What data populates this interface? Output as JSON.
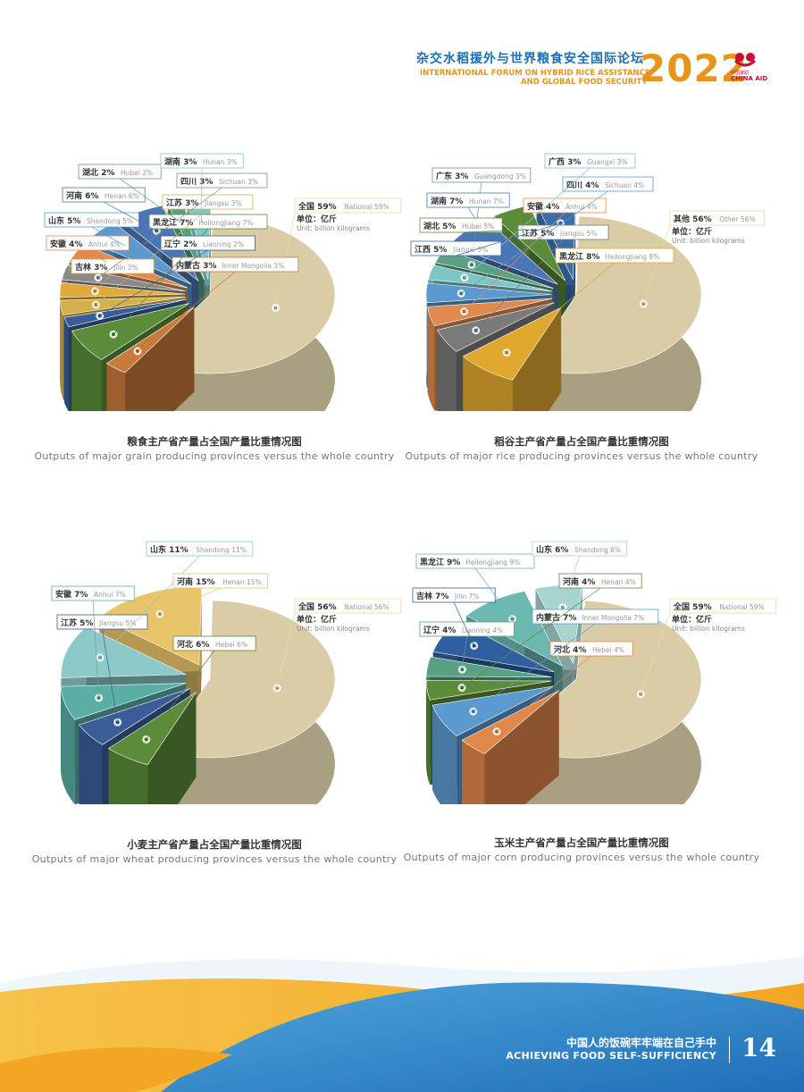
{
  "header": {
    "title_cn": "杂交水稻援外与世界粮食安全国际论坛",
    "title_en_1": "INTERNATIONAL FORUM ON HYBRID RICE ASSISTANCE",
    "title_en_2": "AND GLOBAL FOOD SECURITY",
    "year": "2022",
    "logo_cn": "中国援助",
    "logo_en": "CHINA AID",
    "brand_color": "#e8941a",
    "title_color": "#1a6fb5"
  },
  "footer": {
    "slogan_cn": "中国人的饭碗牢牢端在自己手中",
    "slogan_en": "ACHIEVING FOOD SELF-SUFFICIENCY",
    "page_number": "14"
  },
  "chart_data": [
    {
      "type": "pie",
      "title_cn": "粮食主产省产量占全国产量比重情况图",
      "title_en": "Outputs of major grain producing provinces versus the whole country",
      "unit_cn": "单位：亿斤",
      "unit_en": "Unit: billion kilograms",
      "slices": [
        {
          "cn": "全国",
          "en": "National",
          "pct": 59,
          "label": "全国 59%",
          "sub": "National 59%",
          "color": "#d9cca6"
        },
        {
          "cn": "内蒙古",
          "en": "Inner Mongolia",
          "pct": 3,
          "label": "内蒙古 3%",
          "sub": "Inner Mongolia 3%",
          "color": "#c87a3a"
        },
        {
          "cn": "黑龙江",
          "en": "Heilongjiang",
          "pct": 7,
          "label": "黑龙江 7%",
          "sub": "Heilongjiang 7%",
          "color": "#5b8c3a"
        },
        {
          "cn": "辽宁",
          "en": "Liaoning",
          "pct": 2,
          "label": "辽宁 2%",
          "sub": "Liaoning 2%",
          "color": "#3a5d9a"
        },
        {
          "cn": "江苏",
          "en": "Jiangsu",
          "pct": 3,
          "label": "江苏 3%",
          "sub": "Jiangsu 3%",
          "color": "#d4b04a"
        },
        {
          "cn": "吉林",
          "en": "Jilin",
          "pct": 3,
          "label": "吉林 3%",
          "sub": "Jilin 3%",
          "color": "#e0a93a"
        },
        {
          "cn": "四川",
          "en": "Sichuan",
          "pct": 3,
          "label": "四川 3%",
          "sub": "Sichuan 3%",
          "color": "#8a8a8a"
        },
        {
          "cn": "安徽",
          "en": "Anhui",
          "pct": 4,
          "label": "安徽 4%",
          "sub": "Anhui 4%",
          "color": "#e08a50"
        },
        {
          "cn": "山东",
          "en": "Shandong",
          "pct": 5,
          "label": "山东 5%",
          "sub": "Shandong 5%",
          "color": "#5a9ad0"
        },
        {
          "cn": "河南",
          "en": "Henan",
          "pct": 6,
          "label": "河南 6%",
          "sub": "Henan 6%",
          "color": "#4a76b5"
        },
        {
          "cn": "湖北",
          "en": "Hubei",
          "pct": 2,
          "label": "湖北 2%",
          "sub": "Hubei 2%",
          "color": "#5aa082"
        },
        {
          "cn": "湖南",
          "en": "Hunan",
          "pct": 3,
          "label": "湖南 3%",
          "sub": "Hunan 3%",
          "color": "#7ec6c6"
        }
      ]
    },
    {
      "type": "pie",
      "title_cn": "稻谷主产省产量占全国产量比重情况图",
      "title_en": "Outputs of major rice producing provinces versus the whole country",
      "unit_cn": "单位：亿斤",
      "unit_en": "Unit: billion kilograms",
      "slices": [
        {
          "cn": "其他",
          "en": "Other",
          "pct": 56,
          "label": "其他 56%",
          "sub": "Other 56%",
          "color": "#d9cca6"
        },
        {
          "cn": "黑龙江",
          "en": "Heilongjiang",
          "pct": 8,
          "label": "黑龙江 8%",
          "sub": "Heilongjiang 8%",
          "color": "#e0a82e"
        },
        {
          "cn": "江苏",
          "en": "Jiangsu",
          "pct": 5,
          "label": "江苏 5%",
          "sub": "Jiangsu 5%",
          "color": "#7a7a7a"
        },
        {
          "cn": "安徽",
          "en": "Anhui",
          "pct": 4,
          "label": "安徽 4%",
          "sub": "Anhui 4%",
          "color": "#e08a50"
        },
        {
          "cn": "四川",
          "en": "Sichuan",
          "pct": 4,
          "label": "四川 4%",
          "sub": "Sichuan 4%",
          "color": "#5a9ad0"
        },
        {
          "cn": "广西",
          "en": "Guangxi",
          "pct": 3,
          "label": "广西 3%",
          "sub": "Guangxi 3%",
          "color": "#7ec6c6"
        },
        {
          "cn": "广东",
          "en": "Guangdong",
          "pct": 3,
          "label": "广东 3%",
          "sub": "Guangdong 3%",
          "color": "#5aa082"
        },
        {
          "cn": "湖南",
          "en": "Hunan",
          "pct": 7,
          "label": "湖南 7%",
          "sub": "Hunan 7%",
          "color": "#4a76b5"
        },
        {
          "cn": "湖北",
          "en": "Hubei",
          "pct": 5,
          "label": "湖北 5%",
          "sub": "Hubei 5%",
          "color": "#5b8c3a"
        },
        {
          "cn": "江西",
          "en": "Jiangxi",
          "pct": 5,
          "label": "江西 5%",
          "sub": "Jiangxi 5%",
          "color": "#3a6ea8"
        }
      ]
    },
    {
      "type": "pie",
      "title_cn": "小麦主产省产量占全国产量比重情况图",
      "title_en": "Outputs of major wheat producing provinces versus the whole country",
      "unit_cn": "单位：亿斤",
      "unit_en": "Unit: billion kilograms",
      "slices": [
        {
          "cn": "全国",
          "en": "National",
          "pct": 56,
          "label": "全国 56%",
          "sub": "National 56%",
          "color": "#d9cca6"
        },
        {
          "cn": "河北",
          "en": "Hebei",
          "pct": 6,
          "label": "河北 6%",
          "sub": "Hebei 6%",
          "color": "#5b8c3a"
        },
        {
          "cn": "江苏",
          "en": "Jiangsu",
          "pct": 5,
          "label": "江苏 5%",
          "sub": "Jiangsu 5%",
          "color": "#3a5d9a"
        },
        {
          "cn": "安徽",
          "en": "Anhui",
          "pct": 7,
          "label": "安徽 7%",
          "sub": "Anhui 7%",
          "color": "#5aaea4"
        },
        {
          "cn": "山东",
          "en": "Shandong",
          "pct": 11,
          "label": "山东 11%",
          "sub": "Shandong 11%",
          "color": "#8ec9c9"
        },
        {
          "cn": "河南",
          "en": "Henan",
          "pct": 15,
          "label": "河南 15%",
          "sub": "Henan 15%",
          "color": "#e8c46a"
        }
      ]
    },
    {
      "type": "pie",
      "title_cn": "玉米主产省产量占全国产量比重情况图",
      "title_en": "Outputs of major corn producing provinces versus the whole country",
      "unit_cn": "单位：亿斤",
      "unit_en": "Unit: billion kilograms",
      "slices": [
        {
          "cn": "全国",
          "en": "National",
          "pct": 59,
          "label": "全国 59%",
          "sub": "National 59%",
          "color": "#d9cca6"
        },
        {
          "cn": "河北",
          "en": "Hebei",
          "pct": 4,
          "label": "河北 4%",
          "sub": "Hebei 4%",
          "color": "#e0874a"
        },
        {
          "cn": "内蒙古",
          "en": "Inner Mongolia",
          "pct": 7,
          "label": "内蒙古 7%",
          "sub": "Inner Mongolia 7%",
          "color": "#5a9ad0"
        },
        {
          "cn": "河南",
          "en": "Henan",
          "pct": 4,
          "label": "河南 4%",
          "sub": "Henan 4%",
          "color": "#5b8c3a"
        },
        {
          "cn": "辽宁",
          "en": "Liaoning",
          "pct": 4,
          "label": "辽宁 4%",
          "sub": "Liaoning 4%",
          "color": "#5aa082"
        },
        {
          "cn": "吉林",
          "en": "Jilin",
          "pct": 7,
          "label": "吉林 7%",
          "sub": "Jilin 7%",
          "color": "#2f5f9e"
        },
        {
          "cn": "黑龙江",
          "en": "Heilongjiang",
          "pct": 9,
          "label": "黑龙江 9%",
          "sub": "Heilongjiang 9%",
          "color": "#6ab8b0"
        },
        {
          "cn": "山东",
          "en": "Shandong",
          "pct": 6,
          "label": "山东 6%",
          "sub": "Shandong 6%",
          "color": "#a8d4d0"
        }
      ]
    }
  ]
}
